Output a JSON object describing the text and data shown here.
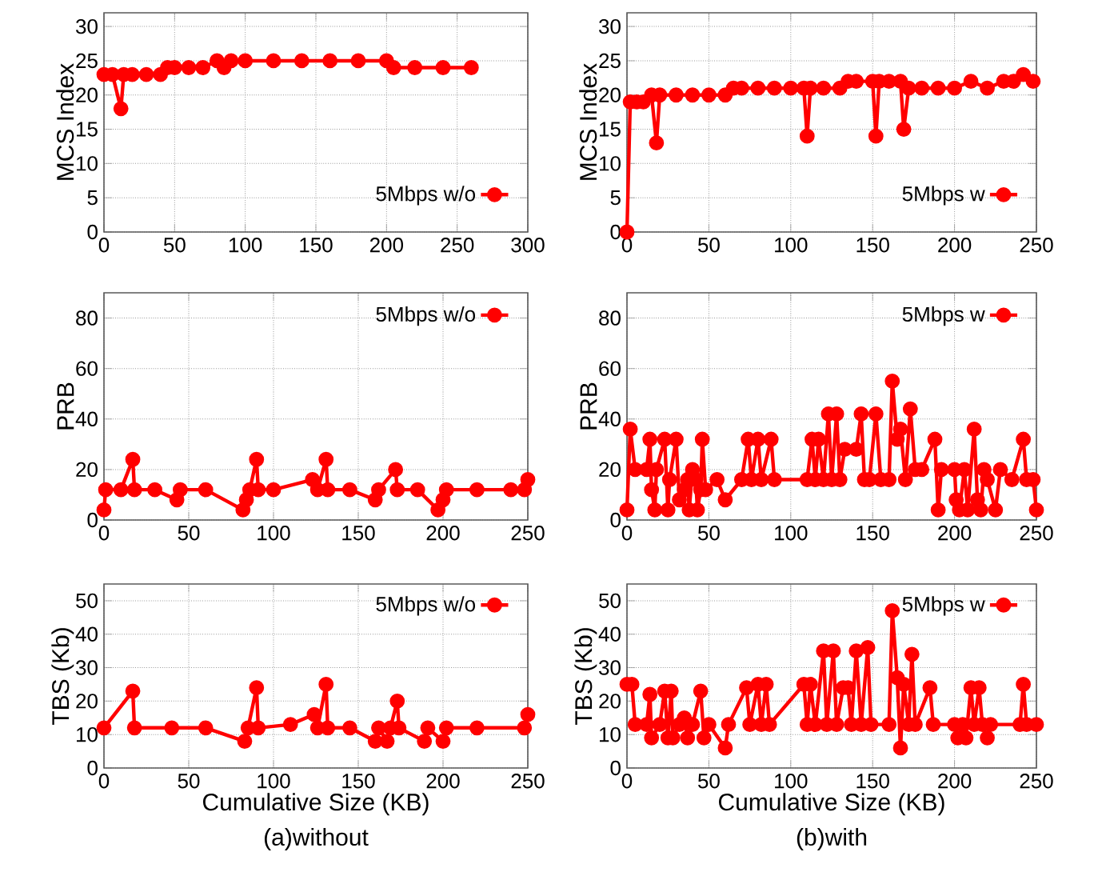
{
  "chart_data": [
    {
      "type": "line",
      "ylabel": "MCS Index",
      "xlim": [
        0,
        300
      ],
      "ylim": [
        0,
        32
      ],
      "xticks": [
        0,
        50,
        100,
        150,
        200,
        250,
        300
      ],
      "yticks": [
        0,
        5,
        10,
        15,
        20,
        25,
        30
      ],
      "grid": true,
      "legend": "bottom right",
      "marker": "circle",
      "x": [
        0,
        6,
        12,
        14,
        20,
        30,
        40,
        45,
        50,
        60,
        70,
        80,
        85,
        90,
        100,
        120,
        140,
        160,
        180,
        200,
        205,
        220,
        240,
        260
      ],
      "series": [
        {
          "name": "5Mbps w/o",
          "color": "#ff0000",
          "values": [
            23,
            23,
            18,
            23,
            23,
            23,
            23,
            24,
            24,
            24,
            24,
            25,
            24,
            25,
            25,
            25,
            25,
            25,
            25,
            25,
            24,
            24,
            24,
            24
          ]
        }
      ]
    },
    {
      "type": "line",
      "ylabel": "MCS Index",
      "xlim": [
        0,
        250
      ],
      "ylim": [
        0,
        32
      ],
      "xticks": [
        0,
        50,
        100,
        150,
        200,
        250
      ],
      "yticks": [
        0,
        5,
        10,
        15,
        20,
        25,
        30
      ],
      "grid": true,
      "legend": "bottom right",
      "marker": "circle",
      "x": [
        0,
        2,
        6,
        10,
        15,
        18,
        20,
        30,
        40,
        50,
        60,
        65,
        70,
        80,
        90,
        100,
        108,
        110,
        112,
        120,
        130,
        135,
        140,
        150,
        152,
        154,
        160,
        167,
        169,
        172,
        180,
        190,
        200,
        210,
        220,
        230,
        236,
        242,
        248
      ],
      "series": [
        {
          "name": "5Mbps w",
          "color": "#ff0000",
          "values": [
            0,
            19,
            19,
            19,
            20,
            13,
            20,
            20,
            20,
            20,
            20,
            21,
            21,
            21,
            21,
            21,
            21,
            14,
            21,
            21,
            21,
            22,
            22,
            22,
            14,
            22,
            22,
            22,
            15,
            21,
            21,
            21,
            21,
            22,
            21,
            22,
            22,
            23,
            22
          ]
        }
      ]
    },
    {
      "type": "line",
      "ylabel": "PRB",
      "xlim": [
        0,
        250
      ],
      "ylim": [
        0,
        90
      ],
      "xticks": [
        0,
        50,
        100,
        150,
        200,
        250
      ],
      "yticks": [
        0,
        20,
        40,
        60,
        80
      ],
      "grid": true,
      "legend": "top right",
      "marker": "circle",
      "x": [
        0,
        1,
        10,
        17,
        18,
        30,
        43,
        45,
        60,
        82,
        84,
        86,
        90,
        91,
        100,
        123,
        126,
        131,
        132,
        145,
        160,
        162,
        172,
        173,
        185,
        197,
        200,
        202,
        220,
        240,
        248,
        250
      ],
      "series": [
        {
          "name": "5Mbps w/o",
          "color": "#ff0000",
          "values": [
            4,
            12,
            12,
            24,
            12,
            12,
            8,
            12,
            12,
            4,
            8,
            12,
            24,
            12,
            12,
            16,
            12,
            24,
            12,
            12,
            8,
            12,
            20,
            12,
            12,
            4,
            8,
            12,
            12,
            12,
            12,
            16
          ]
        }
      ]
    },
    {
      "type": "line",
      "ylabel": "PRB",
      "xlim": [
        0,
        250
      ],
      "ylim": [
        0,
        90
      ],
      "xticks": [
        0,
        50,
        100,
        150,
        200,
        250
      ],
      "yticks": [
        0,
        20,
        40,
        60,
        80
      ],
      "grid": true,
      "legend": "top right",
      "marker": "circle",
      "x": [
        0,
        2,
        5,
        12,
        14,
        15,
        17,
        18,
        23,
        25,
        26,
        30,
        32,
        35,
        37,
        38,
        40,
        42,
        43,
        45,
        46,
        48,
        55,
        60,
        70,
        74,
        76,
        80,
        82,
        88,
        90,
        110,
        113,
        115,
        117,
        120,
        123,
        125,
        128,
        130,
        133,
        140,
        143,
        145,
        148,
        152,
        155,
        160,
        162,
        165,
        167,
        170,
        173,
        176,
        180,
        188,
        190,
        192,
        200,
        201,
        203,
        206,
        208,
        212,
        214,
        216,
        218,
        220,
        225,
        228,
        235,
        242,
        244,
        248,
        250
      ],
      "series": [
        {
          "name": "5Mbps w",
          "color": "#ff0000",
          "values": [
            4,
            36,
            20,
            20,
            32,
            12,
            4,
            20,
            32,
            4,
            16,
            32,
            8,
            12,
            16,
            4,
            20,
            16,
            4,
            12,
            32,
            12,
            16,
            8,
            16,
            32,
            16,
            32,
            16,
            32,
            16,
            16,
            32,
            16,
            32,
            16,
            42,
            16,
            42,
            16,
            28,
            28,
            42,
            16,
            16,
            42,
            16,
            16,
            55,
            32,
            36,
            16,
            44,
            20,
            20,
            32,
            4,
            20,
            20,
            8,
            4,
            20,
            4,
            36,
            8,
            4,
            20,
            16,
            4,
            20,
            16,
            32,
            16,
            16,
            4
          ]
        }
      ]
    },
    {
      "type": "line",
      "ylabel": "TBS (Kb)",
      "xlabel": "Cumulative Size (KB)",
      "annotations": [
        "(a)without"
      ],
      "xlim": [
        0,
        250
      ],
      "ylim": [
        0,
        55
      ],
      "xticks": [
        0,
        50,
        100,
        150,
        200,
        250
      ],
      "yticks": [
        0,
        10,
        20,
        30,
        40,
        50
      ],
      "grid": true,
      "legend": "top right",
      "marker": "circle",
      "x": [
        0,
        17,
        18,
        40,
        60,
        83,
        85,
        90,
        91,
        110,
        124,
        126,
        131,
        132,
        145,
        160,
        162,
        167,
        169,
        173,
        174,
        189,
        191,
        200,
        202,
        220,
        248,
        250
      ],
      "series": [
        {
          "name": "5Mbps w/o",
          "color": "#ff0000",
          "values": [
            12,
            23,
            12,
            12,
            12,
            8,
            12,
            24,
            12,
            13,
            16,
            12,
            25,
            12,
            12,
            8,
            12,
            8,
            12,
            20,
            12,
            8,
            12,
            8,
            12,
            12,
            12,
            16
          ]
        }
      ]
    },
    {
      "type": "line",
      "ylabel": "TBS (Kb)",
      "xlabel": "Cumulative Size (KB)",
      "annotations": [
        "(b)with"
      ],
      "xlim": [
        0,
        250
      ],
      "ylim": [
        0,
        55
      ],
      "xticks": [
        0,
        50,
        100,
        150,
        200,
        250
      ],
      "yticks": [
        0,
        10,
        20,
        30,
        40,
        50
      ],
      "grid": true,
      "legend": "top right",
      "marker": "circle",
      "x": [
        0,
        3,
        5,
        12,
        14,
        15,
        20,
        23,
        25,
        27,
        28,
        32,
        35,
        37,
        40,
        45,
        47,
        50,
        60,
        62,
        73,
        75,
        80,
        82,
        85,
        87,
        108,
        110,
        112,
        115,
        120,
        122,
        126,
        128,
        132,
        135,
        137,
        140,
        143,
        147,
        149,
        160,
        162,
        165,
        167,
        169,
        172,
        174,
        176,
        185,
        187,
        200,
        202,
        205,
        207,
        210,
        212,
        215,
        217,
        220,
        222,
        240,
        242,
        244,
        250
      ],
      "series": [
        {
          "name": "5Mbps w",
          "color": "#ff0000",
          "values": [
            25,
            25,
            13,
            13,
            22,
            9,
            13,
            23,
            9,
            23,
            9,
            13,
            15,
            9,
            13,
            23,
            9,
            13,
            6,
            13,
            24,
            13,
            25,
            13,
            25,
            13,
            25,
            13,
            25,
            13,
            35,
            13,
            35,
            13,
            24,
            24,
            13,
            35,
            13,
            36,
            13,
            13,
            47,
            27,
            6,
            25,
            13,
            34,
            13,
            24,
            13,
            13,
            9,
            13,
            9,
            24,
            13,
            24,
            13,
            9,
            13,
            13,
            25,
            13,
            13
          ]
        }
      ]
    }
  ]
}
